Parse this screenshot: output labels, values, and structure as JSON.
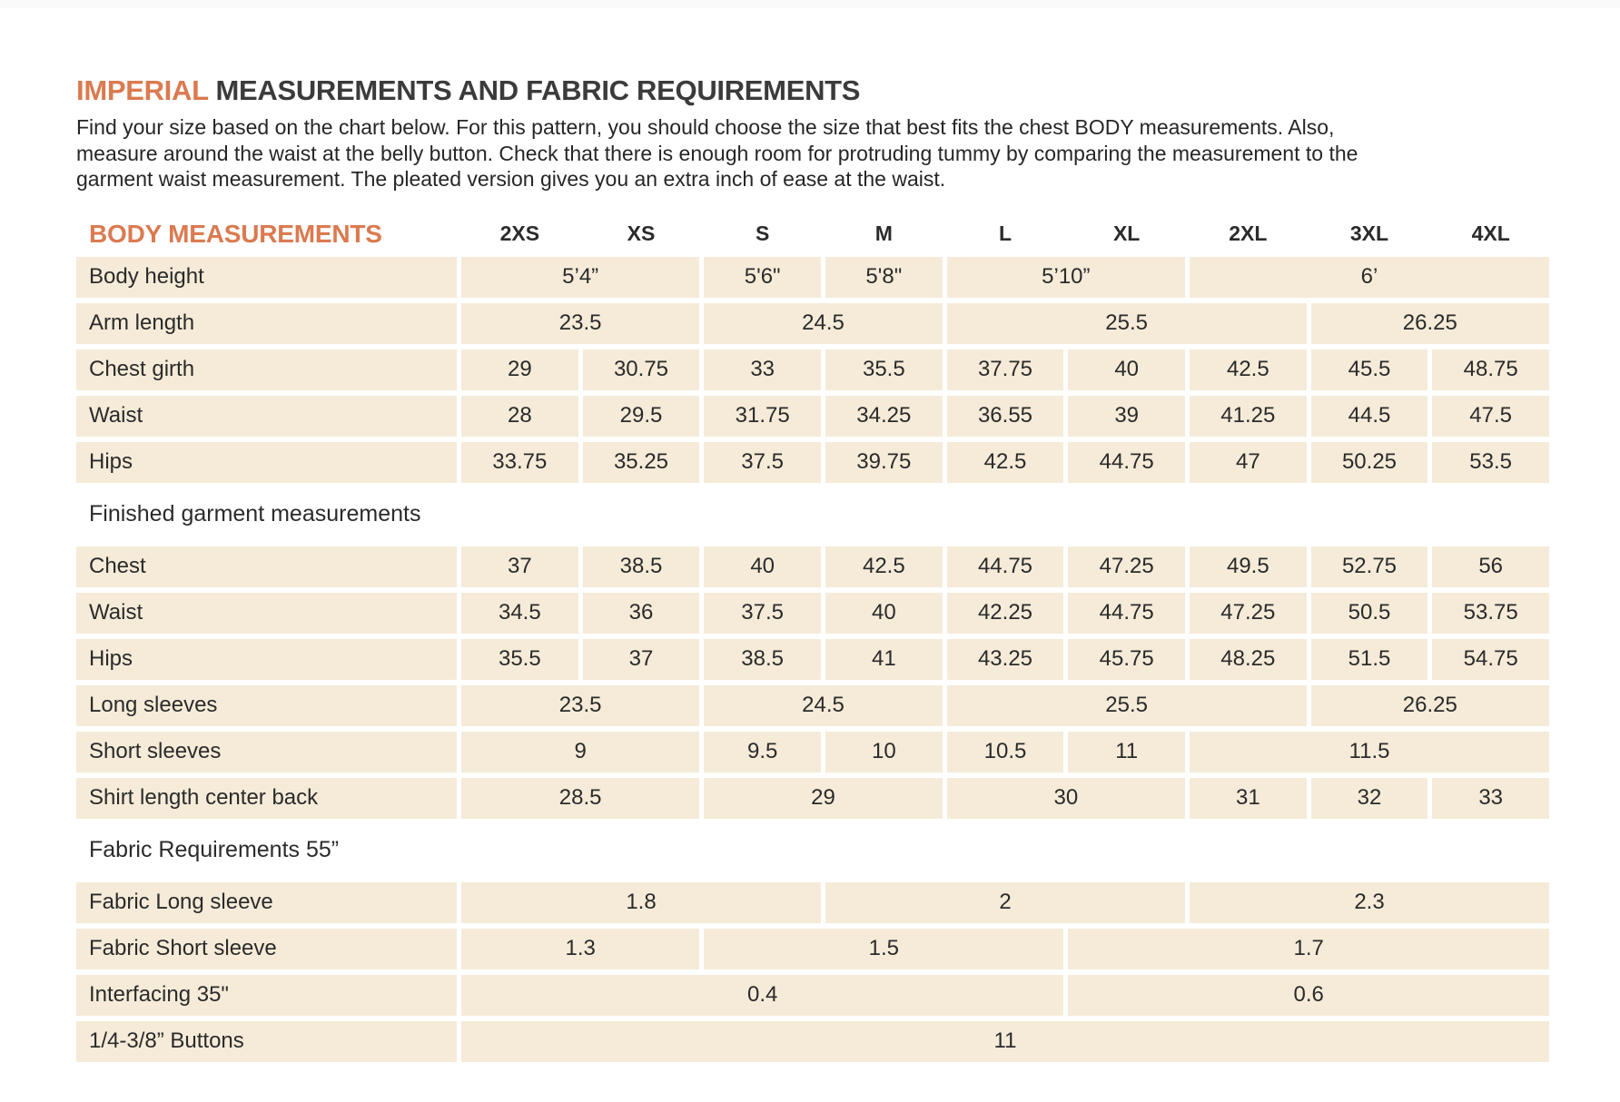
{
  "page": {
    "title_accent": "IMPERIAL",
    "title_rest": "MEASUREMENTS AND FABRIC REQUIREMENTS",
    "intro": "Find your size based on the chart below. For this pattern, you should choose the size that best fits the chest BODY measurements. Also, measure around the waist at the belly button. Check that there is enough room for protruding tummy by comparing the measurement to the garment waist measurement. The pleated version gives you an extra inch of ease at the waist."
  },
  "colors": {
    "accent_orange": "#DB7A50",
    "row_beige": "#F5EBD8",
    "text_dark": "#2E2D2C"
  },
  "table": {
    "header_label": "BODY MEASUREMENTS",
    "size_columns": [
      "2XS",
      "XS",
      "S",
      "M",
      "L",
      "XL",
      "2XL",
      "3XL",
      "4XL"
    ],
    "rows": [
      {
        "label": "Body height",
        "cells": [
          {
            "span": 2,
            "value": "5’4”"
          },
          {
            "span": 1,
            "value": "5'6\""
          },
          {
            "span": 1,
            "value": "5'8\""
          },
          {
            "span": 2,
            "value": "5’10”"
          },
          {
            "span": 3,
            "value": "6’"
          }
        ]
      },
      {
        "label": "Arm length",
        "cells": [
          {
            "span": 2,
            "value": "23.5"
          },
          {
            "span": 2,
            "value": "24.5"
          },
          {
            "span": 3,
            "value": "25.5"
          },
          {
            "span": 2,
            "value": "26.25"
          }
        ]
      },
      {
        "label": "Chest girth",
        "cells": [
          {
            "span": 1,
            "value": "29"
          },
          {
            "span": 1,
            "value": "30.75"
          },
          {
            "span": 1,
            "value": "33"
          },
          {
            "span": 1,
            "value": "35.5"
          },
          {
            "span": 1,
            "value": "37.75"
          },
          {
            "span": 1,
            "value": "40"
          },
          {
            "span": 1,
            "value": "42.5"
          },
          {
            "span": 1,
            "value": "45.5"
          },
          {
            "span": 1,
            "value": "48.75"
          }
        ]
      },
      {
        "label": "Waist",
        "cells": [
          {
            "span": 1,
            "value": "28"
          },
          {
            "span": 1,
            "value": "29.5"
          },
          {
            "span": 1,
            "value": "31.75"
          },
          {
            "span": 1,
            "value": "34.25"
          },
          {
            "span": 1,
            "value": "36.55"
          },
          {
            "span": 1,
            "value": "39"
          },
          {
            "span": 1,
            "value": "41.25"
          },
          {
            "span": 1,
            "value": "44.5"
          },
          {
            "span": 1,
            "value": "47.5"
          }
        ]
      },
      {
        "label": "Hips",
        "cells": [
          {
            "span": 1,
            "value": "33.75"
          },
          {
            "span": 1,
            "value": "35.25"
          },
          {
            "span": 1,
            "value": "37.5"
          },
          {
            "span": 1,
            "value": "39.75"
          },
          {
            "span": 1,
            "value": "42.5"
          },
          {
            "span": 1,
            "value": "44.75"
          },
          {
            "span": 1,
            "value": "47"
          },
          {
            "span": 1,
            "value": "50.25"
          },
          {
            "span": 1,
            "value": "53.5"
          }
        ]
      },
      {
        "section": "Finished garment measurements"
      },
      {
        "label": "Chest",
        "cells": [
          {
            "span": 1,
            "value": "37"
          },
          {
            "span": 1,
            "value": "38.5"
          },
          {
            "span": 1,
            "value": "40"
          },
          {
            "span": 1,
            "value": "42.5"
          },
          {
            "span": 1,
            "value": "44.75"
          },
          {
            "span": 1,
            "value": "47.25"
          },
          {
            "span": 1,
            "value": "49.5"
          },
          {
            "span": 1,
            "value": "52.75"
          },
          {
            "span": 1,
            "value": "56"
          }
        ]
      },
      {
        "label": "Waist",
        "cells": [
          {
            "span": 1,
            "value": "34.5"
          },
          {
            "span": 1,
            "value": "36"
          },
          {
            "span": 1,
            "value": "37.5"
          },
          {
            "span": 1,
            "value": "40"
          },
          {
            "span": 1,
            "value": "42.25"
          },
          {
            "span": 1,
            "value": "44.75"
          },
          {
            "span": 1,
            "value": "47.25"
          },
          {
            "span": 1,
            "value": "50.5"
          },
          {
            "span": 1,
            "value": "53.75"
          }
        ]
      },
      {
        "label": "Hips",
        "cells": [
          {
            "span": 1,
            "value": "35.5"
          },
          {
            "span": 1,
            "value": "37"
          },
          {
            "span": 1,
            "value": "38.5"
          },
          {
            "span": 1,
            "value": "41"
          },
          {
            "span": 1,
            "value": "43.25"
          },
          {
            "span": 1,
            "value": "45.75"
          },
          {
            "span": 1,
            "value": "48.25"
          },
          {
            "span": 1,
            "value": "51.5"
          },
          {
            "span": 1,
            "value": "54.75"
          }
        ]
      },
      {
        "label": "Long sleeves",
        "cells": [
          {
            "span": 2,
            "value": "23.5"
          },
          {
            "span": 2,
            "value": "24.5"
          },
          {
            "span": 3,
            "value": "25.5"
          },
          {
            "span": 2,
            "value": "26.25"
          }
        ]
      },
      {
        "label": "Short sleeves",
        "cells": [
          {
            "span": 2,
            "value": "9"
          },
          {
            "span": 1,
            "value": "9.5"
          },
          {
            "span": 1,
            "value": "10"
          },
          {
            "span": 1,
            "value": "10.5"
          },
          {
            "span": 1,
            "value": "11"
          },
          {
            "span": 3,
            "value": "11.5"
          }
        ]
      },
      {
        "label": "Shirt length center back",
        "cells": [
          {
            "span": 2,
            "value": "28.5"
          },
          {
            "span": 2,
            "value": "29"
          },
          {
            "span": 2,
            "value": "30"
          },
          {
            "span": 1,
            "value": "31"
          },
          {
            "span": 1,
            "value": "32"
          },
          {
            "span": 1,
            "value": "33"
          }
        ]
      },
      {
        "section": "Fabric Requirements 55”"
      },
      {
        "label": "Fabric Long sleeve",
        "cells": [
          {
            "span": 3,
            "value": "1.8"
          },
          {
            "span": 3,
            "value": "2"
          },
          {
            "span": 3,
            "value": "2.3"
          }
        ]
      },
      {
        "label": "Fabric Short sleeve",
        "cells": [
          {
            "span": 2,
            "value": "1.3"
          },
          {
            "span": 3,
            "value": "1.5"
          },
          {
            "span": 4,
            "value": "1.7"
          }
        ]
      },
      {
        "label": "Interfacing 35\"",
        "cells": [
          {
            "span": 5,
            "value": "0.4"
          },
          {
            "span": 4,
            "value": "0.6"
          }
        ]
      },
      {
        "label": "1/4-3/8” Buttons",
        "cells": [
          {
            "span": 9,
            "value": "11"
          }
        ]
      }
    ]
  }
}
